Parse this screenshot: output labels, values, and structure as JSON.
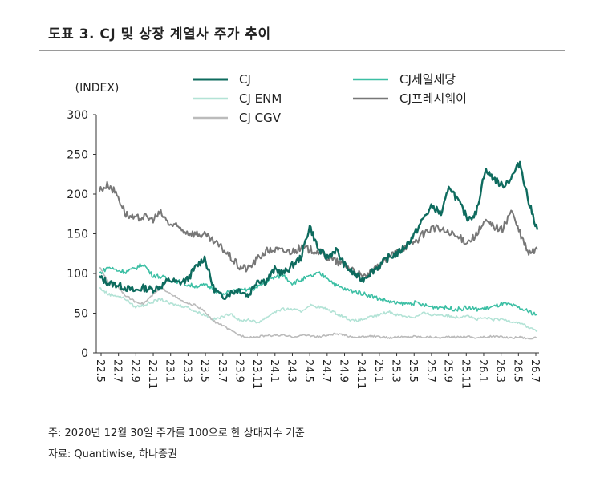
{
  "title": "도표 3. CJ 및 상장 계열사 주가 추이",
  "notes": {
    "line1": "주: 2020년 12월 30일 주가를 100으로 한 상대지수 기준",
    "line2": "자료: Quantiwise, 하나증권"
  },
  "chart_data": {
    "type": "line",
    "ylabel": "(INDEX)",
    "ylim": [
      0,
      300
    ],
    "yticks": [
      "300",
      "250",
      "200",
      "150",
      "100",
      "50",
      "0"
    ],
    "x_tick_labels": [
      "22.5",
      "22.7",
      "22.9",
      "22.11",
      "23.1",
      "23.3",
      "23.5",
      "23.7",
      "23.9",
      "23.11",
      "24.1",
      "24.3",
      "24.5",
      "24.7",
      "24.9",
      "24.11",
      "25.1",
      "25.3",
      "25.5",
      "25.7",
      "25.9",
      "25.11",
      "26.1",
      "26.3",
      "26.5",
      "26.7"
    ],
    "legend_position": "top",
    "grid": false,
    "x": [
      "22.5",
      "22.6",
      "22.7",
      "22.8",
      "22.9",
      "22.10",
      "22.11",
      "22.12",
      "23.1",
      "23.2",
      "23.3",
      "23.4",
      "23.5",
      "23.6",
      "23.7",
      "23.8",
      "23.9",
      "23.10",
      "23.11",
      "23.12",
      "24.1",
      "24.2",
      "24.3",
      "24.4",
      "24.5",
      "24.6",
      "24.7",
      "24.8",
      "24.9",
      "24.10",
      "24.11",
      "24.12",
      "25.1",
      "25.2",
      "25.3",
      "25.4",
      "25.5",
      "25.6",
      "25.7",
      "25.8",
      "25.9",
      "25.10",
      "25.11",
      "25.12",
      "26.1",
      "26.2",
      "26.3",
      "26.4",
      "26.5",
      "26.6",
      "26.7"
    ],
    "series": [
      {
        "name": "CJ",
        "color": "#0e6b5e",
        "width": 2.4,
        "values": [
          95,
          88,
          86,
          82,
          78,
          82,
          80,
          84,
          92,
          88,
          92,
          108,
          120,
          82,
          70,
          76,
          80,
          72,
          92,
          90,
          105,
          100,
          110,
          120,
          160,
          130,
          120,
          130,
          110,
          100,
          92,
          102,
          110,
          120,
          125,
          135,
          150,
          170,
          185,
          175,
          210,
          190,
          170,
          175,
          230,
          220,
          210,
          220,
          240,
          190,
          155
        ]
      },
      {
        "name": "CJ제일제당",
        "color": "#3cbfa4",
        "width": 1.6,
        "values": [
          100,
          108,
          104,
          102,
          106,
          112,
          98,
          96,
          92,
          90,
          86,
          84,
          85,
          82,
          72,
          78,
          78,
          80,
          82,
          90,
          95,
          98,
          88,
          92,
          96,
          100,
          95,
          85,
          80,
          78,
          75,
          72,
          68,
          65,
          62,
          62,
          63,
          60,
          58,
          58,
          56,
          55,
          57,
          55,
          56,
          58,
          62,
          60,
          56,
          52,
          48
        ]
      },
      {
        "name": "CJ ENM",
        "color": "#b3e3d6",
        "width": 1.6,
        "values": [
          82,
          74,
          72,
          68,
          58,
          60,
          64,
          68,
          62,
          60,
          58,
          52,
          48,
          42,
          45,
          50,
          40,
          42,
          38,
          44,
          52,
          55,
          55,
          52,
          60,
          58,
          55,
          50,
          45,
          40,
          42,
          45,
          48,
          52,
          48,
          46,
          45,
          50,
          48,
          48,
          46,
          45,
          48,
          42,
          44,
          42,
          42,
          40,
          38,
          32,
          28
        ]
      },
      {
        "name": "CJ프레시웨이",
        "color": "#777777",
        "width": 2.0,
        "values": [
          205,
          212,
          200,
          175,
          168,
          172,
          168,
          176,
          162,
          158,
          152,
          150,
          148,
          140,
          132,
          120,
          108,
          106,
          118,
          128,
          130,
          128,
          128,
          132,
          130,
          128,
          120,
          115,
          110,
          105,
          95,
          100,
          110,
          120,
          128,
          135,
          140,
          150,
          158,
          155,
          150,
          145,
          140,
          148,
          165,
          160,
          155,
          180,
          150,
          125,
          130
        ]
      },
      {
        "name": "CJ CGV",
        "color": "#bbbbbb",
        "width": 1.6,
        "values": [
          108,
          90,
          85,
          72,
          65,
          62,
          72,
          82,
          76,
          68,
          62,
          60,
          52,
          40,
          35,
          28,
          22,
          20,
          20,
          22,
          22,
          22,
          20,
          22,
          22,
          20,
          22,
          24,
          22,
          20,
          20,
          21,
          20,
          19,
          20,
          20,
          21,
          20,
          20,
          19,
          20,
          20,
          21,
          19,
          20,
          21,
          20,
          19,
          20,
          18,
          19
        ]
      }
    ]
  }
}
